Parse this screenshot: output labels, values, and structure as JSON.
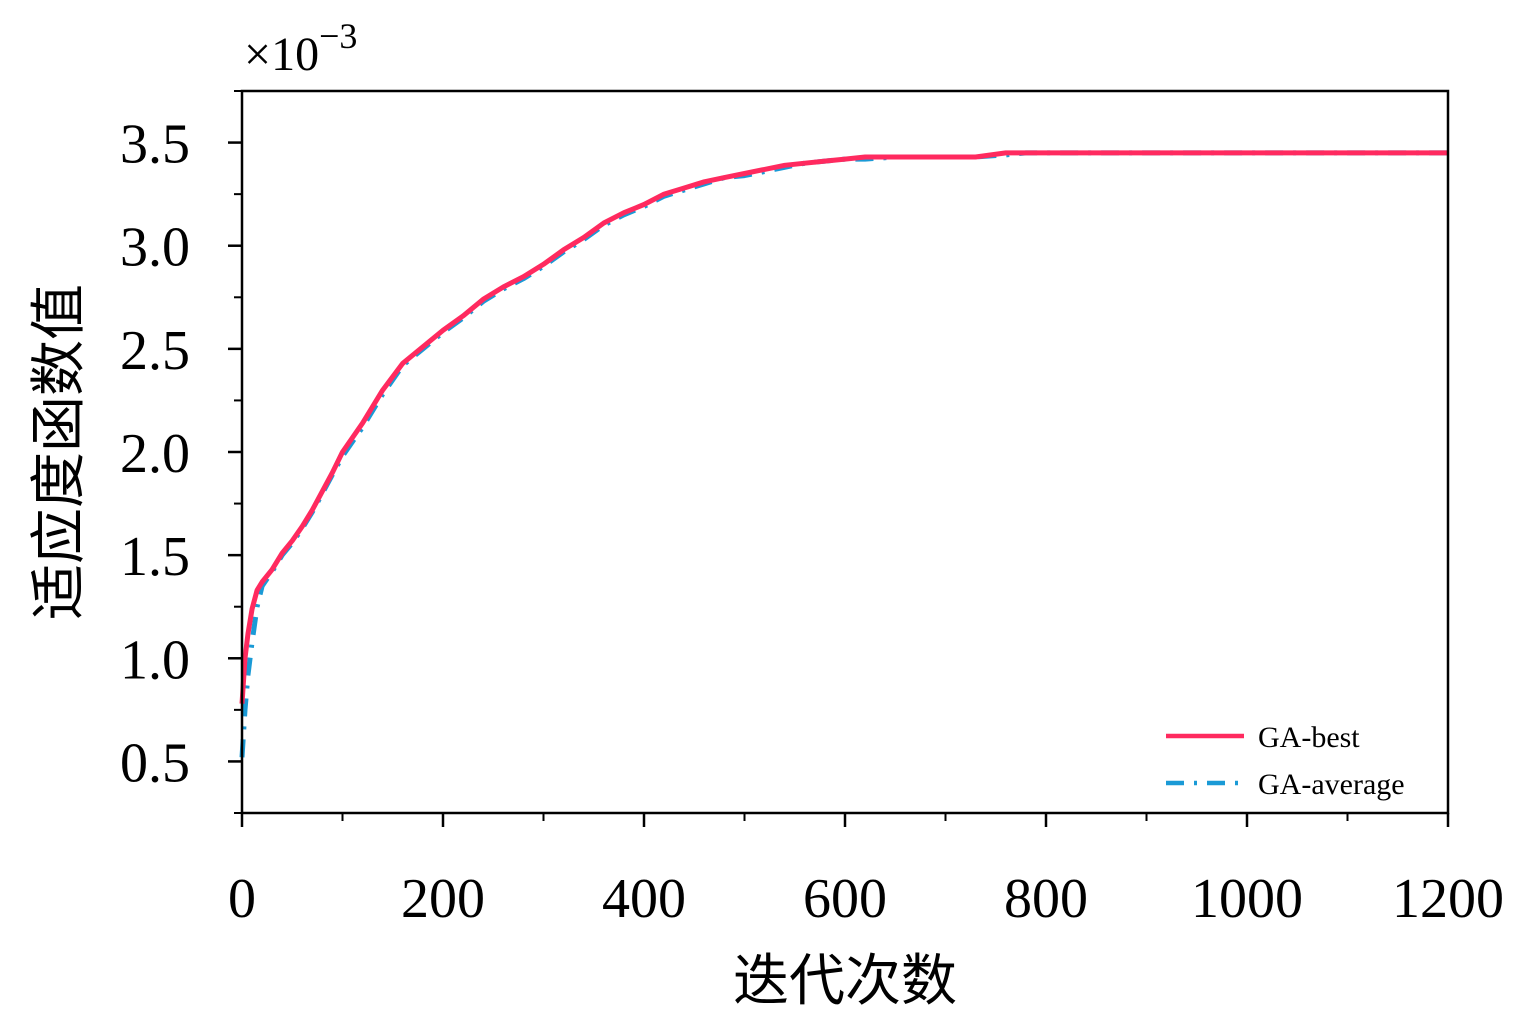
{
  "chart_data": {
    "type": "line",
    "title": "",
    "xlabel": "迭代次数",
    "ylabel": "适应度函数值",
    "y_multiplier": {
      "base": "×10",
      "exponent": "−3"
    },
    "xlim": [
      0,
      1200
    ],
    "ylim": [
      0.25,
      3.75
    ],
    "x_ticks": [
      0,
      200,
      400,
      600,
      800,
      1000,
      1200
    ],
    "x_tick_labels": [
      "0",
      "200",
      "400",
      "600",
      "800",
      "1000",
      "1200"
    ],
    "y_ticks": [
      0.5,
      1.0,
      1.5,
      2.0,
      2.5,
      3.0,
      3.5
    ],
    "y_tick_labels": [
      "0.5",
      "1.0",
      "1.5",
      "2.0",
      "2.5",
      "3.0",
      "3.5"
    ],
    "x_minor_step": 100,
    "y_minor_step": 0.25,
    "grid": false,
    "legend_position": "bottom-right",
    "series": [
      {
        "name": "GA-best",
        "color": "#ff2a5f",
        "style": "solid",
        "x": [
          0,
          3,
          6,
          10,
          15,
          20,
          30,
          40,
          50,
          60,
          70,
          80,
          90,
          100,
          120,
          140,
          160,
          180,
          200,
          220,
          240,
          260,
          280,
          300,
          320,
          340,
          360,
          380,
          400,
          420,
          440,
          460,
          480,
          500,
          520,
          540,
          560,
          580,
          600,
          620,
          650,
          700,
          730,
          760,
          780,
          800,
          900,
          1000,
          1100,
          1200
        ],
        "y": [
          0.78,
          1.0,
          1.12,
          1.24,
          1.33,
          1.37,
          1.43,
          1.51,
          1.57,
          1.64,
          1.72,
          1.81,
          1.9,
          2.0,
          2.14,
          2.3,
          2.43,
          2.51,
          2.59,
          2.66,
          2.74,
          2.8,
          2.85,
          2.91,
          2.98,
          3.04,
          3.11,
          3.16,
          3.2,
          3.25,
          3.28,
          3.31,
          3.33,
          3.35,
          3.37,
          3.39,
          3.4,
          3.41,
          3.42,
          3.43,
          3.43,
          3.43,
          3.43,
          3.45,
          3.45,
          3.45,
          3.45,
          3.45,
          3.45,
          3.45
        ]
      },
      {
        "name": "GA-average",
        "color": "#1a9ad6",
        "style": "dash-dot",
        "x": [
          0,
          3,
          6,
          10,
          15,
          20,
          30,
          40,
          50,
          60,
          70,
          80,
          90,
          100,
          120,
          140,
          160,
          180,
          200,
          220,
          240,
          260,
          280,
          300,
          320,
          340,
          360,
          380,
          400,
          420,
          440,
          460,
          480,
          500,
          520,
          540,
          560,
          580,
          600,
          620,
          650,
          700,
          730,
          760,
          780,
          800,
          900,
          1000,
          1100,
          1200
        ],
        "y": [
          0.52,
          0.75,
          0.92,
          1.08,
          1.25,
          1.35,
          1.42,
          1.5,
          1.56,
          1.63,
          1.71,
          1.8,
          1.89,
          1.98,
          2.12,
          2.28,
          2.42,
          2.5,
          2.58,
          2.65,
          2.73,
          2.79,
          2.84,
          2.9,
          2.97,
          3.03,
          3.1,
          3.15,
          3.19,
          3.24,
          3.27,
          3.3,
          3.33,
          3.34,
          3.36,
          3.38,
          3.4,
          3.41,
          3.42,
          3.42,
          3.43,
          3.43,
          3.43,
          3.44,
          3.45,
          3.45,
          3.45,
          3.45,
          3.45,
          3.45
        ]
      }
    ]
  }
}
